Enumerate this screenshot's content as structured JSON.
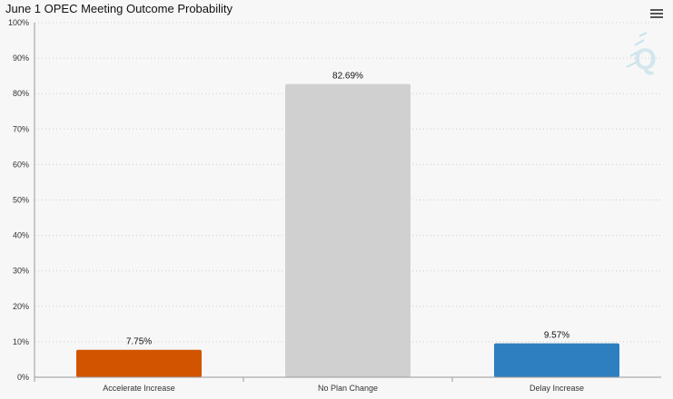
{
  "title": "June 1 OPEC Meeting Outcome Probability",
  "menu_icon": "hamburger-menu-icon",
  "watermark_icon": "q-logo-icon",
  "colors": {
    "background": "#f7f7f7",
    "grid": "#cccccc",
    "axis": "#999999"
  },
  "chart_data": {
    "type": "bar",
    "title": "June 1 OPEC Meeting Outcome Probability",
    "xlabel": "",
    "ylabel": "",
    "categories": [
      "Accelerate Increase",
      "No Plan Change",
      "Delay Increase"
    ],
    "values": [
      7.75,
      82.69,
      9.57
    ],
    "data_labels": [
      "7.75%",
      "82.69%",
      "9.57%"
    ],
    "bar_colors": [
      "#d35400",
      "#d0d0d0",
      "#2e7fc0"
    ],
    "ylim": [
      0,
      100
    ],
    "yticks": [
      0,
      10,
      20,
      30,
      40,
      50,
      60,
      70,
      80,
      90,
      100
    ],
    "ytick_labels": [
      "0%",
      "10%",
      "20%",
      "30%",
      "40%",
      "50%",
      "60%",
      "70%",
      "80%",
      "90%",
      "100%"
    ],
    "grid": true,
    "legend": "none"
  }
}
